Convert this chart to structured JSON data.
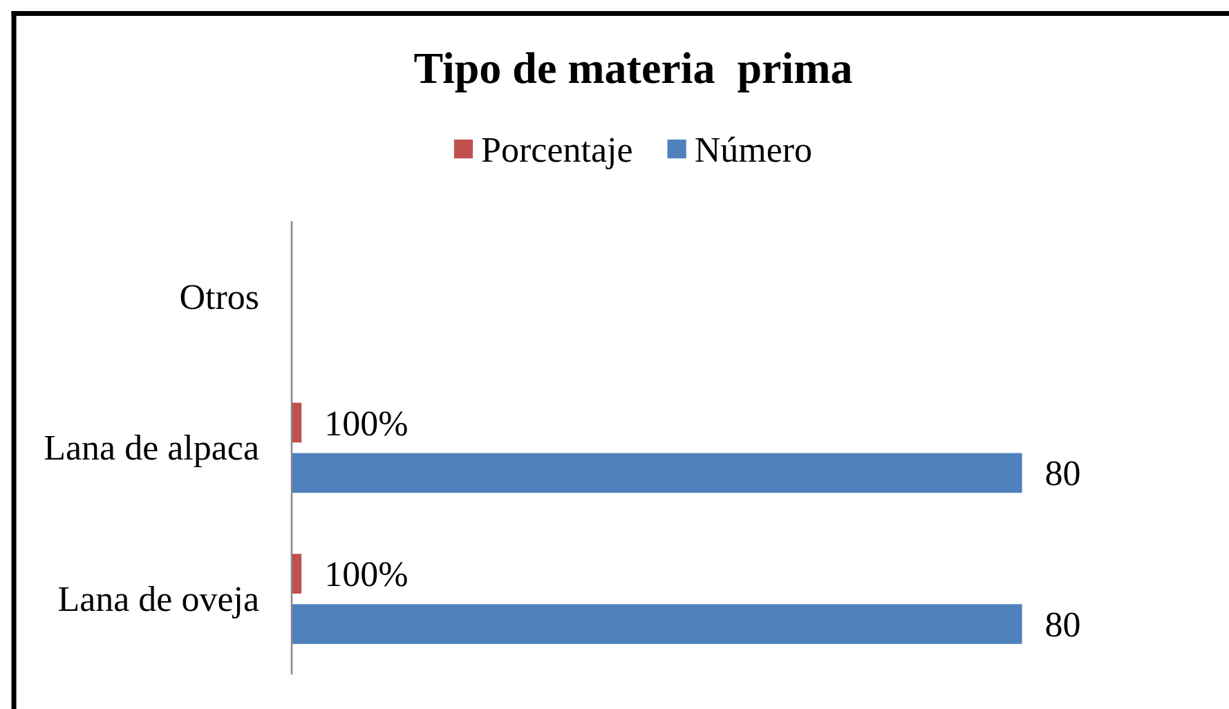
{
  "chart_data": {
    "type": "bar",
    "orientation": "horizontal",
    "title": "Tipo de materia  prima",
    "categories": [
      "Otros",
      "Lana de alpaca",
      "Lana de oveja"
    ],
    "series": [
      {
        "name": "Porcentaje",
        "color": "#c0504d",
        "values": [
          null,
          1,
          1
        ],
        "value_labels": [
          null,
          "100%",
          "100%"
        ]
      },
      {
        "name": "Número",
        "color": "#4f81bd",
        "values": [
          null,
          80,
          80
        ],
        "value_labels": [
          null,
          "80",
          "80"
        ]
      }
    ],
    "legend": "top",
    "tick_labels": "y"
  }
}
